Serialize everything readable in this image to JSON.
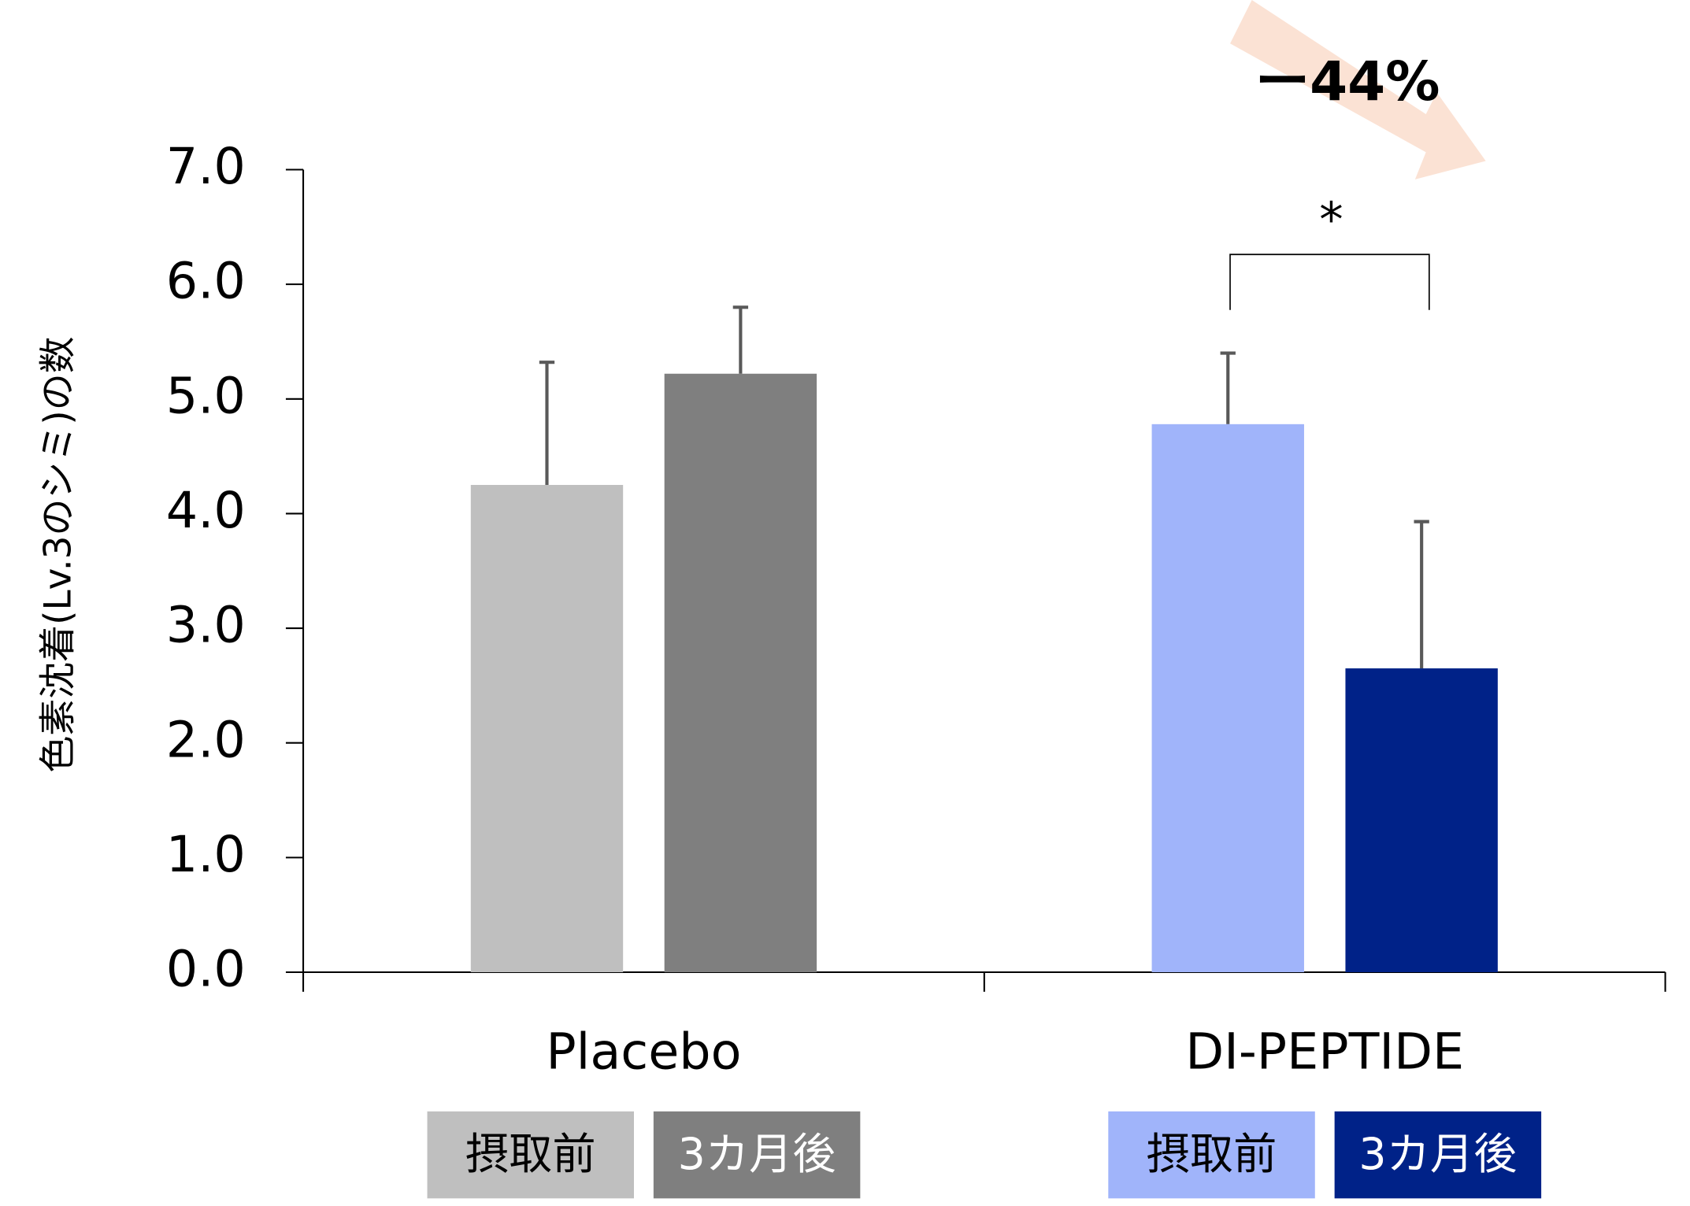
{
  "chart_data": {
    "type": "bar",
    "y_label": "色素沈着(Lv.3のシミ)の数",
    "categories": [
      "Placebo",
      "DI-PEPTIDE"
    ],
    "series": [
      {
        "name": "摂取前",
        "colors": [
          "#bfbfbf",
          "#a0b4fa"
        ],
        "values": [
          4.25,
          4.78
        ],
        "errors": [
          1.07,
          0.62
        ]
      },
      {
        "name": "3カ月後",
        "colors": [
          "#7f7f7f",
          "#002288"
        ],
        "values": [
          5.22,
          2.65
        ],
        "errors": [
          0.58,
          1.28
        ]
      }
    ],
    "ylim": [
      0,
      7
    ],
    "yticks": [
      {
        "value": 0,
        "label": "0.0"
      },
      {
        "value": 1,
        "label": "1.0"
      },
      {
        "value": 2,
        "label": "2.0"
      },
      {
        "value": 3,
        "label": "3.0"
      },
      {
        "value": 4,
        "label": "4.0"
      },
      {
        "value": 5,
        "label": "5.0"
      },
      {
        "value": 6,
        "label": "6.0"
      },
      {
        "value": 7,
        "label": "7.0"
      }
    ],
    "annotations": {
      "change": "ー44%",
      "significance": "*"
    }
  }
}
